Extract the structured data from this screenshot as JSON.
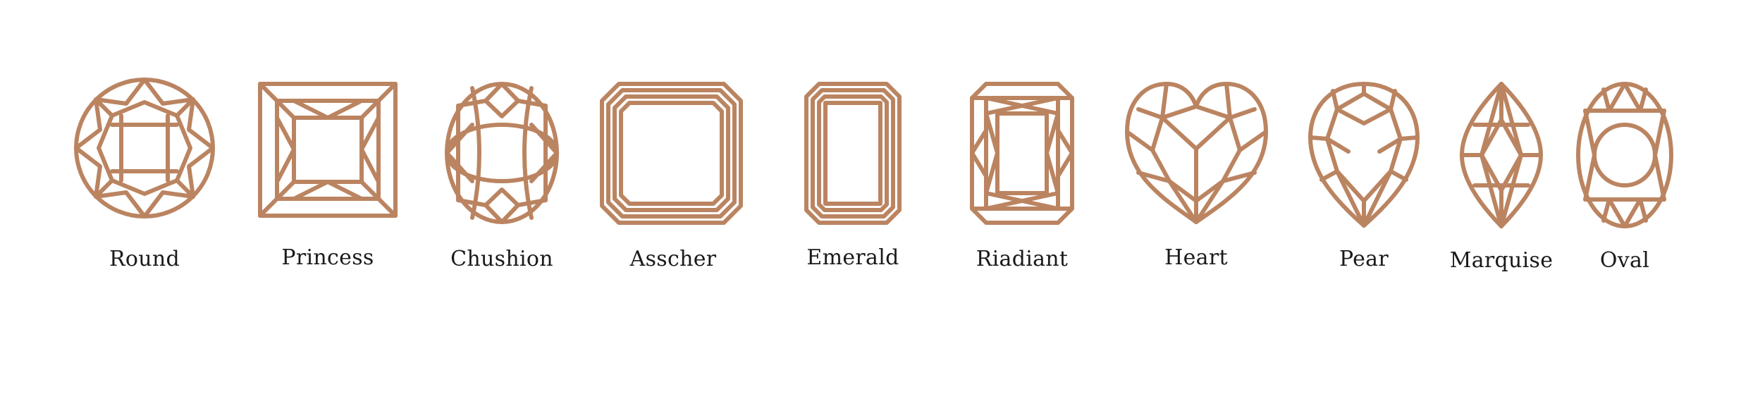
{
  "colors": {
    "stroke": "#bb8461",
    "text": "#1a1a1a",
    "background": "#ffffff"
  },
  "shapes": [
    {
      "label": "Round",
      "icon": "round-cut-icon"
    },
    {
      "label": "Princess",
      "icon": "princess-cut-icon"
    },
    {
      "label": "Chushion",
      "icon": "cushion-cut-icon"
    },
    {
      "label": "Asscher",
      "icon": "asscher-cut-icon"
    },
    {
      "label": "Emerald",
      "icon": "emerald-cut-icon"
    },
    {
      "label": "Riadiant",
      "icon": "radiant-cut-icon"
    },
    {
      "label": "Heart",
      "icon": "heart-cut-icon"
    },
    {
      "label": "Pear",
      "icon": "pear-cut-icon"
    },
    {
      "label": "Marquise",
      "icon": "marquise-cut-icon"
    },
    {
      "label": "Oval",
      "icon": "oval-cut-icon"
    }
  ]
}
